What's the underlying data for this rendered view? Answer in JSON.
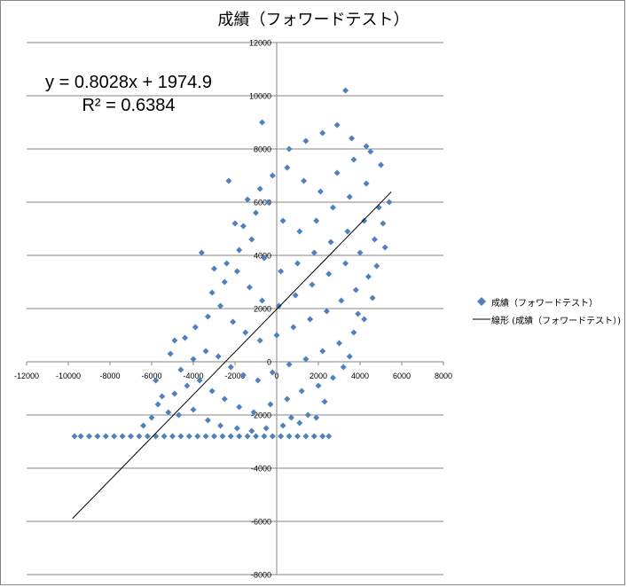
{
  "chart_data": {
    "type": "scatter",
    "title": "成績（フォワードテスト）",
    "xlabel": "",
    "ylabel": "",
    "xlim": [
      -12000,
      8000
    ],
    "ylim": [
      -8000,
      12000
    ],
    "x_ticks": [
      -12000,
      -10000,
      -8000,
      -6000,
      -4000,
      -2000,
      0,
      2000,
      4000,
      6000,
      8000
    ],
    "y_ticks": [
      -8000,
      -6000,
      -4000,
      -2000,
      0,
      2000,
      4000,
      6000,
      8000,
      10000,
      12000
    ],
    "x_tick_labels": [
      "-12000",
      "-10000",
      "-8000",
      "-6000",
      "-4000",
      "-2000",
      "0",
      "2000",
      "4000",
      "6000",
      "8000"
    ],
    "y_tick_labels": [
      "-8000",
      "-6000",
      "-4000",
      "-2000",
      "0",
      "2000",
      "4000",
      "6000",
      "8000",
      "10000",
      "12000"
    ],
    "grid": "horizontal major gridlines",
    "marker_color": "#4F81BD",
    "trendline_color": "#000000",
    "trendline": {
      "type": "linear",
      "slope": 0.8028,
      "intercept": 1974.9,
      "r_squared": 0.6384,
      "x_range": [
        -9800,
        5500
      ]
    },
    "equation_lines": [
      "y = 0.8028x + 1974.9",
      "R² = 0.6384"
    ],
    "legend": {
      "position": "right",
      "entries": [
        "成績（フォワードテスト）",
        "線形 (成績（フォワードテスト）)"
      ]
    },
    "series": [
      {
        "name": "成績（フォワードテスト）",
        "points": [
          [
            3300,
            10200
          ],
          [
            -700,
            9000
          ],
          [
            -2300,
            6800
          ],
          [
            -3600,
            4100
          ],
          [
            -4900,
            800
          ],
          [
            -6400,
            -2400
          ],
          [
            -9700,
            -2800
          ],
          [
            -9400,
            -2800
          ],
          [
            -9000,
            -2800
          ],
          [
            -8600,
            -2800
          ],
          [
            -8200,
            -2800
          ],
          [
            -7800,
            -2800
          ],
          [
            -7400,
            -2800
          ],
          [
            -7000,
            -2800
          ],
          [
            -6600,
            -2800
          ],
          [
            -6200,
            -2800
          ],
          [
            -5800,
            -2800
          ],
          [
            -5400,
            -2800
          ],
          [
            -5000,
            -2800
          ],
          [
            -4600,
            -2800
          ],
          [
            -4200,
            -2800
          ],
          [
            -3800,
            -2800
          ],
          [
            -3400,
            -2800
          ],
          [
            -3000,
            -2800
          ],
          [
            -2600,
            -2800
          ],
          [
            -2200,
            -2800
          ],
          [
            -1800,
            -2800
          ],
          [
            -1400,
            -2800
          ],
          [
            -1000,
            -2800
          ],
          [
            -600,
            -2800
          ],
          [
            -200,
            -2800
          ],
          [
            200,
            -2800
          ],
          [
            600,
            -2800
          ],
          [
            1000,
            -2800
          ],
          [
            1400,
            -2800
          ],
          [
            1800,
            -2800
          ],
          [
            2200,
            -2800
          ],
          [
            2500,
            -2800
          ],
          [
            -5200,
            -1900
          ],
          [
            -4700,
            -2000
          ],
          [
            -4000,
            -1800
          ],
          [
            -3300,
            -2200
          ],
          [
            -2700,
            -2400
          ],
          [
            -1900,
            -2500
          ],
          [
            -1200,
            -2600
          ],
          [
            -500,
            -2500
          ],
          [
            300,
            -2400
          ],
          [
            1100,
            -2300
          ],
          [
            1900,
            -2100
          ],
          [
            -5500,
            -1300
          ],
          [
            -4900,
            -1200
          ],
          [
            -4300,
            -900
          ],
          [
            -3700,
            -700
          ],
          [
            -3100,
            -1100
          ],
          [
            -2500,
            -1400
          ],
          [
            -1800,
            -1700
          ],
          [
            -1100,
            -1900
          ],
          [
            -300,
            -1600
          ],
          [
            500,
            -1400
          ],
          [
            1200,
            -1100
          ],
          [
            2000,
            -900
          ],
          [
            2700,
            -600
          ],
          [
            3200,
            -200
          ],
          [
            -4600,
            -300
          ],
          [
            -4000,
            100
          ],
          [
            -3400,
            400
          ],
          [
            -2800,
            200
          ],
          [
            -2200,
            -200
          ],
          [
            -1600,
            -500
          ],
          [
            -900,
            -700
          ],
          [
            -200,
            -400
          ],
          [
            600,
            -100
          ],
          [
            1400,
            100
          ],
          [
            2200,
            400
          ],
          [
            3000,
            700
          ],
          [
            3700,
            1100
          ],
          [
            4200,
            1600
          ],
          [
            -3900,
            1300
          ],
          [
            -3300,
            1700
          ],
          [
            -2700,
            2100
          ],
          [
            -2100,
            1500
          ],
          [
            -1500,
            1100
          ],
          [
            -800,
            800
          ],
          [
            0,
            1000
          ],
          [
            800,
            1300
          ],
          [
            1600,
            1600
          ],
          [
            2400,
            1900
          ],
          [
            3100,
            2300
          ],
          [
            3800,
            2700
          ],
          [
            4400,
            3200
          ],
          [
            -3100,
            2600
          ],
          [
            -2500,
            3000
          ],
          [
            -1900,
            3400
          ],
          [
            -1300,
            2800
          ],
          [
            -700,
            2300
          ],
          [
            100,
            2100
          ],
          [
            900,
            2500
          ],
          [
            1700,
            2900
          ],
          [
            2500,
            3300
          ],
          [
            3300,
            3700
          ],
          [
            4000,
            4100
          ],
          [
            4700,
            4600
          ],
          [
            -2400,
            3700
          ],
          [
            -1800,
            4200
          ],
          [
            -1200,
            4600
          ],
          [
            -600,
            3900
          ],
          [
            200,
            3400
          ],
          [
            1000,
            3700
          ],
          [
            1800,
            4100
          ],
          [
            2600,
            4500
          ],
          [
            3400,
            4900
          ],
          [
            4200,
            5300
          ],
          [
            4900,
            5800
          ],
          [
            -1600,
            5100
          ],
          [
            -1000,
            5600
          ],
          [
            -400,
            6000
          ],
          [
            300,
            5300
          ],
          [
            1100,
            4900
          ],
          [
            1900,
            5300
          ],
          [
            2700,
            5800
          ],
          [
            3500,
            6200
          ],
          [
            4300,
            6700
          ],
          [
            5100,
            5200
          ],
          [
            5400,
            6000
          ],
          [
            -800,
            6500
          ],
          [
            -200,
            7000
          ],
          [
            500,
            7300
          ],
          [
            1300,
            6800
          ],
          [
            2100,
            6400
          ],
          [
            2900,
            7100
          ],
          [
            3700,
            7600
          ],
          [
            4500,
            7900
          ],
          [
            600,
            8000
          ],
          [
            1400,
            8300
          ],
          [
            2200,
            8600
          ],
          [
            2900,
            8900
          ],
          [
            3600,
            8400
          ],
          [
            4300,
            8100
          ],
          [
            5000,
            7400
          ],
          [
            -5800,
            -700
          ],
          [
            -5100,
            300
          ],
          [
            -4400,
            900
          ],
          [
            -3000,
            3500
          ],
          [
            -2000,
            5200
          ],
          [
            -1400,
            6100
          ],
          [
            4800,
            3600
          ],
          [
            5200,
            4300
          ],
          [
            4600,
            2400
          ],
          [
            3900,
            1800
          ],
          [
            3500,
            200
          ],
          [
            2300,
            -1500
          ],
          [
            1500,
            -2000
          ],
          [
            700,
            -2100
          ],
          [
            -6000,
            -2100
          ],
          [
            -5700,
            -1600
          ]
        ]
      }
    ]
  }
}
